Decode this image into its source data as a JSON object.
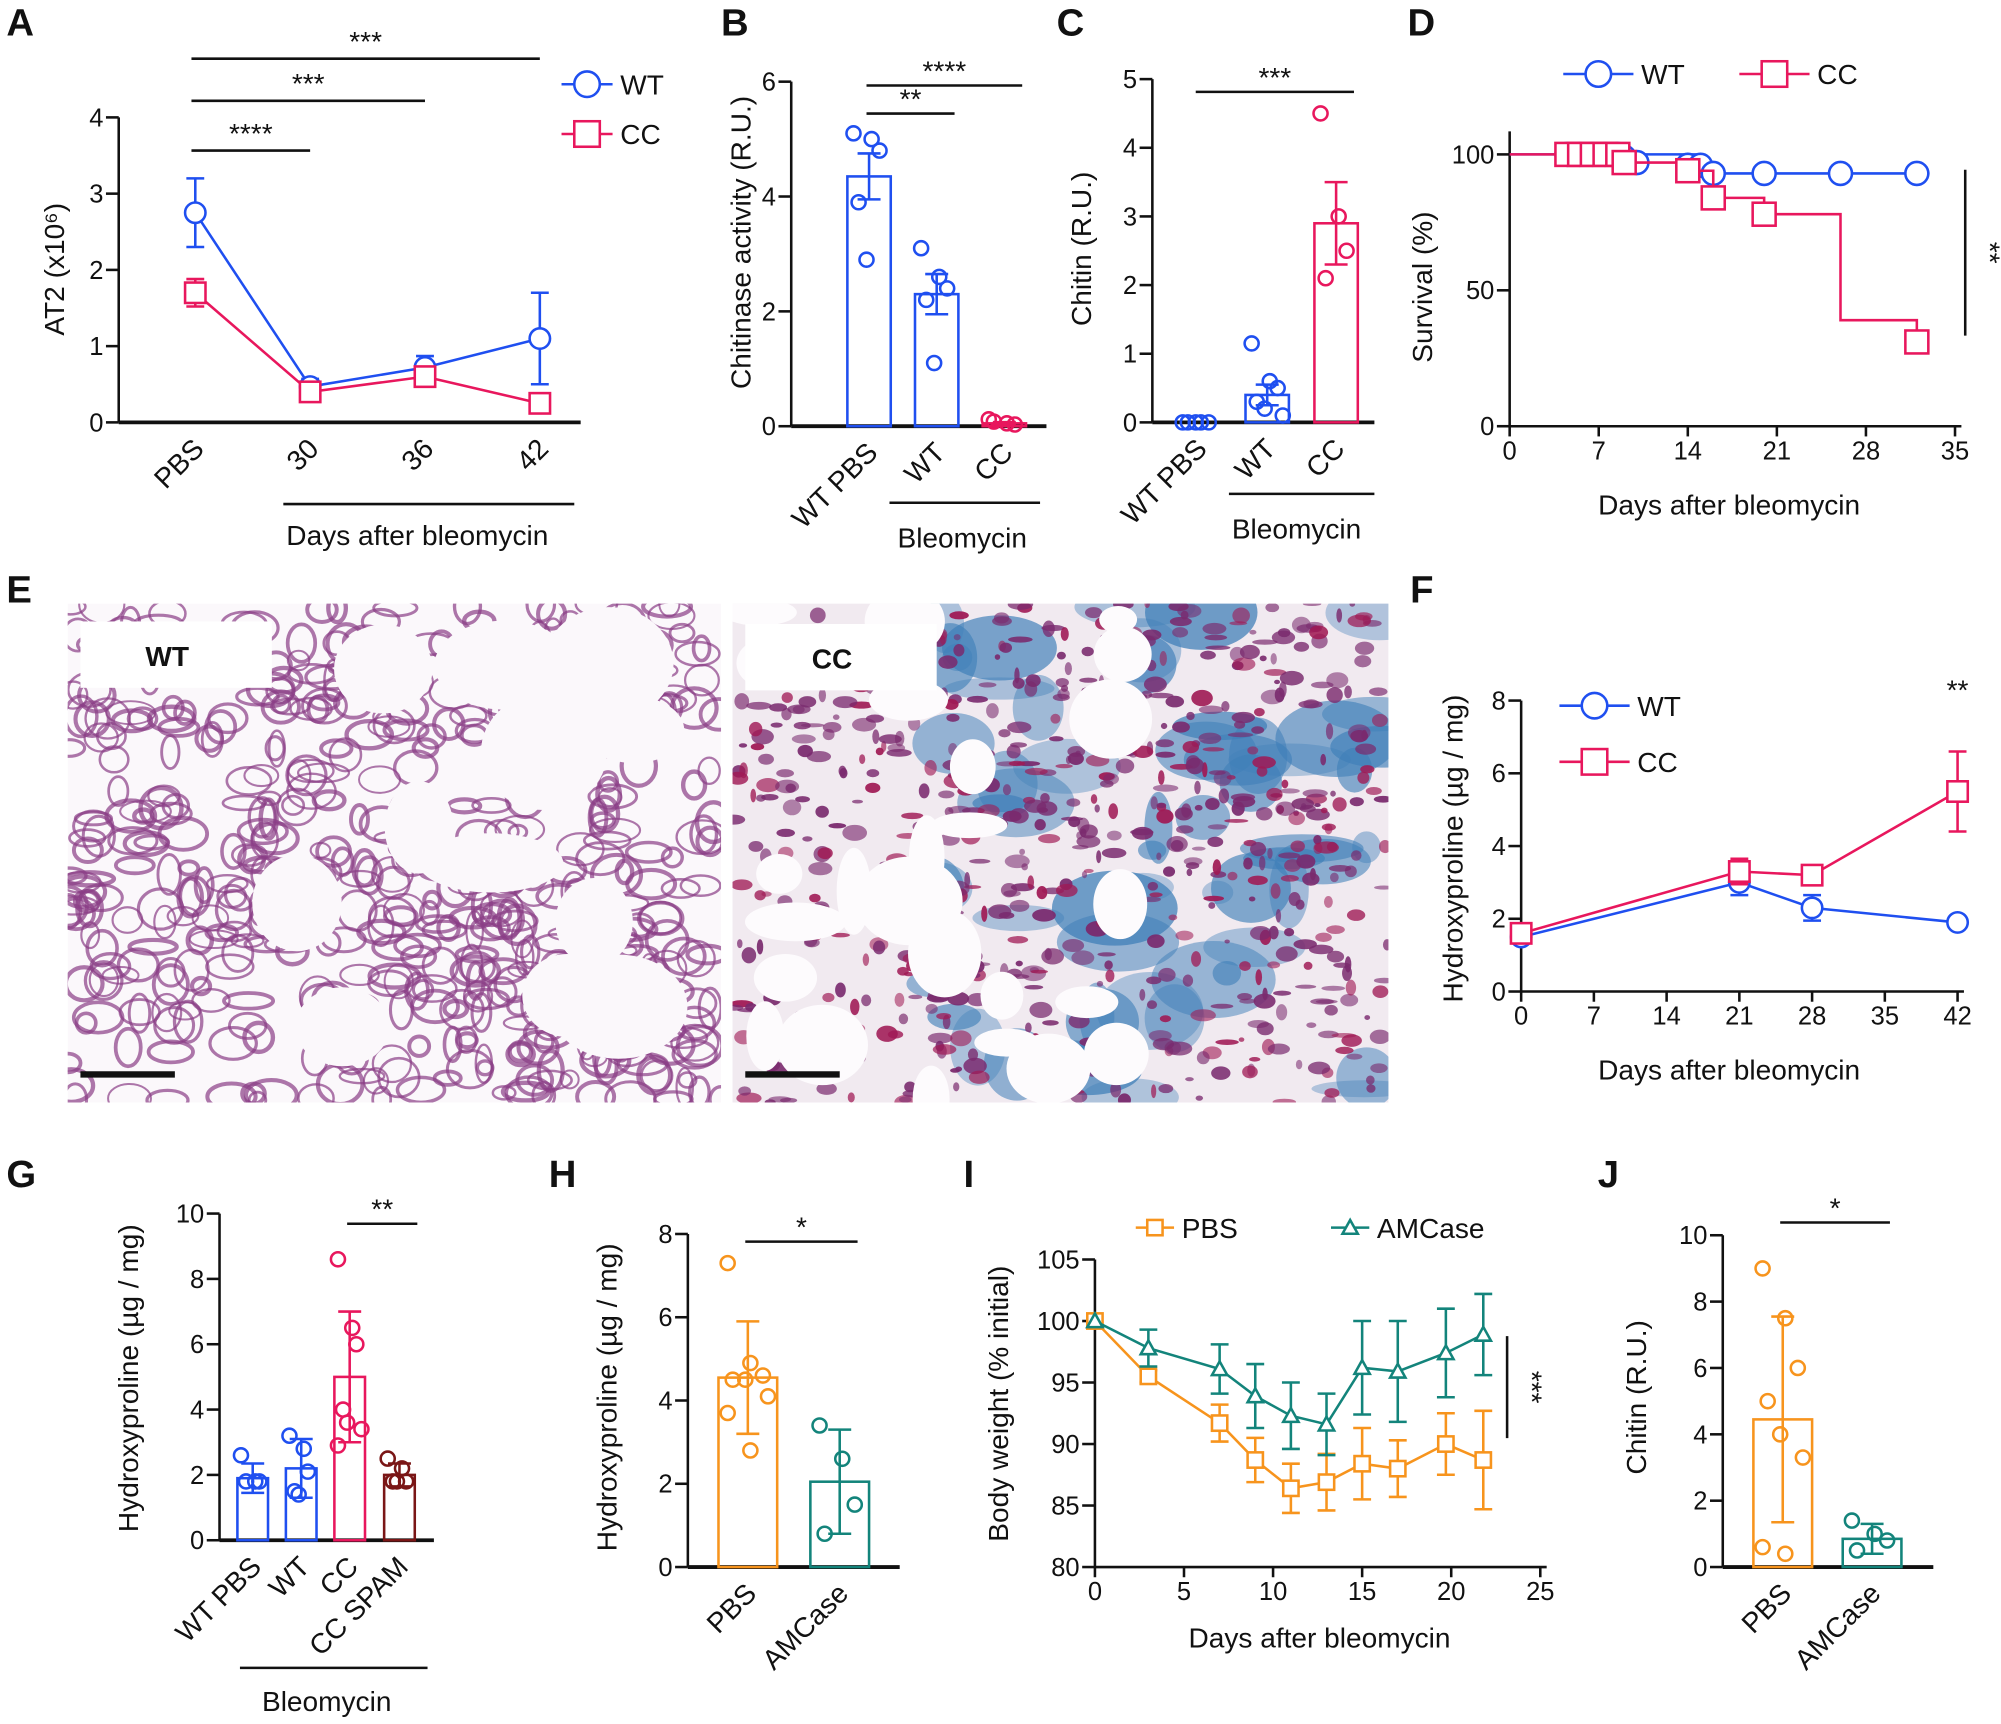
{
  "colors": {
    "wt": "#1f4ff0",
    "cc": "#e8175d",
    "pbs": "#f7941d",
    "amcase": "#13847b",
    "spam": "#7a1616",
    "axis": "#111111"
  },
  "panel_e": {
    "panel": "E",
    "images": [
      {
        "label": "WT"
      },
      {
        "label": "CC"
      }
    ]
  },
  "chart_data": [
    {
      "panel": "A",
      "type": "line",
      "ylabel": "AT2 (x10⁶)",
      "xlabel": "Days after bleomycin",
      "ylim": [
        0,
        4
      ],
      "yticks": [
        "0",
        "1",
        "2",
        "3",
        "4"
      ],
      "categories": [
        "PBS",
        "30",
        "36",
        "42"
      ],
      "series": [
        {
          "name": "WT",
          "color": "wt",
          "marker": "circle",
          "values": [
            2.75,
            0.47,
            0.72,
            1.1
          ],
          "err": [
            0.45,
            0.1,
            0.15,
            0.6
          ]
        },
        {
          "name": "CC",
          "color": "cc",
          "marker": "square",
          "values": [
            1.7,
            0.4,
            0.6,
            0.25
          ],
          "err": [
            0.18,
            0.05,
            0.05,
            0.05
          ]
        }
      ],
      "annotations": [
        {
          "text": "****",
          "from": "PBS",
          "to": "30"
        },
        {
          "text": "***",
          "from": "PBS",
          "to": "36"
        },
        {
          "text": "***",
          "from": "PBS",
          "to": "42"
        }
      ]
    },
    {
      "panel": "B",
      "type": "bar",
      "ylabel": "Chitinase activity (R.U.)",
      "group_label": "Bleomycin",
      "ylim": [
        0,
        6
      ],
      "yticks": [
        "0",
        "2",
        "4",
        "6"
      ],
      "categories": [
        "WT PBS",
        "WT",
        "CC"
      ],
      "bars": [
        {
          "color": "wt",
          "value": 4.35,
          "err": 0.4,
          "points": [
            5.1,
            5.0,
            4.8,
            3.9,
            2.9
          ]
        },
        {
          "color": "wt",
          "value": 2.3,
          "err": 0.35,
          "points": [
            3.1,
            2.6,
            2.4,
            2.2,
            1.1
          ]
        },
        {
          "color": "cc",
          "value": 0.05,
          "err": 0.02,
          "points": [
            0.12,
            0.05,
            0.03,
            0.08
          ]
        }
      ],
      "annotations": [
        {
          "text": "**",
          "from": "WT PBS",
          "to": "WT"
        },
        {
          "text": "****",
          "from": "WT PBS",
          "to": "CC"
        }
      ]
    },
    {
      "panel": "C",
      "type": "bar",
      "ylabel": "Chitin (R.U.)",
      "group_label": "Bleomycin",
      "ylim": [
        0,
        5
      ],
      "yticks": [
        "0",
        "1",
        "2",
        "3",
        "4",
        "5"
      ],
      "categories": [
        "WT PBS",
        "WT",
        "CC"
      ],
      "bars": [
        {
          "color": "wt",
          "value": 0.0,
          "err": 0,
          "points": [
            0,
            0,
            0,
            0,
            0
          ]
        },
        {
          "color": "wt",
          "value": 0.4,
          "err": 0.15,
          "points": [
            1.15,
            0.6,
            0.5,
            0.3,
            0.2,
            0.1
          ]
        },
        {
          "color": "cc",
          "value": 2.9,
          "err": 0.6,
          "points": [
            4.5,
            3.0,
            2.5,
            2.1
          ]
        }
      ],
      "annotations": [
        {
          "text": "***",
          "from": "WT PBS",
          "to": "CC"
        }
      ]
    },
    {
      "panel": "D",
      "type": "line",
      "subtype": "survival",
      "ylabel": "Survival (%)",
      "xlabel": "Days after bleomycin",
      "ylim": [
        0,
        100
      ],
      "yticks": [
        "0",
        "50",
        "100"
      ],
      "xlim": [
        0,
        35
      ],
      "xticks": [
        "0",
        "7",
        "14",
        "21",
        "28",
        "35"
      ],
      "series": [
        {
          "name": "WT",
          "color": "wt",
          "marker": "circle",
          "steps": [
            [
              0,
              100
            ],
            [
              15,
              96
            ],
            [
              16,
              93
            ],
            [
              33,
              93
            ]
          ],
          "censored": [
            [
              4.5,
              100
            ],
            [
              5.5,
              100
            ],
            [
              6.5,
              100
            ],
            [
              7.5,
              100
            ],
            [
              8.5,
              100
            ],
            [
              9,
              99
            ],
            [
              10,
              97
            ],
            [
              14,
              96
            ],
            [
              15,
              96
            ],
            [
              16,
              93
            ],
            [
              20,
              93
            ],
            [
              26,
              93
            ],
            [
              32,
              93
            ]
          ]
        },
        {
          "name": "CC",
          "color": "cc",
          "marker": "square",
          "steps": [
            [
              0,
              100
            ],
            [
              9,
              97
            ],
            [
              14,
              94
            ],
            [
              16,
              84
            ],
            [
              20,
              78
            ],
            [
              26,
              39
            ],
            [
              32,
              31
            ]
          ],
          "censored": [
            [
              4.5,
              100
            ],
            [
              5.5,
              100
            ],
            [
              6.5,
              100
            ],
            [
              7.5,
              100
            ],
            [
              8.5,
              100
            ],
            [
              9,
              97
            ],
            [
              14,
              94
            ],
            [
              16,
              84
            ],
            [
              20,
              78
            ],
            [
              32,
              31
            ]
          ]
        }
      ],
      "annotations": [
        {
          "text": "**",
          "type": "vertical"
        }
      ]
    },
    {
      "panel": "F",
      "type": "line",
      "ylabel": "Hydroxyproline (µg / mg)",
      "xlabel": "Days after bleomycin",
      "ylim": [
        0,
        8
      ],
      "yticks": [
        "0",
        "2",
        "4",
        "6",
        "8"
      ],
      "xlim": [
        0,
        42
      ],
      "xticks": [
        "0",
        "7",
        "14",
        "21",
        "28",
        "35",
        "42"
      ],
      "series": [
        {
          "name": "WT",
          "color": "wt",
          "marker": "circle",
          "x": [
            0,
            21,
            28,
            42
          ],
          "values": [
            1.5,
            3.0,
            2.3,
            1.9
          ],
          "err": [
            0.1,
            0.35,
            0.35,
            0.05
          ]
        },
        {
          "name": "CC",
          "color": "cc",
          "marker": "square",
          "x": [
            0,
            21,
            28,
            42
          ],
          "values": [
            1.6,
            3.3,
            3.2,
            5.5
          ],
          "err": [
            0.2,
            0.35,
            0.1,
            1.1
          ]
        }
      ],
      "annotations": [
        {
          "text": "**",
          "at": 42
        }
      ]
    },
    {
      "panel": "G",
      "type": "bar",
      "ylabel": "Hydroxyproline (µg / mg)",
      "group_label": "Bleomycin",
      "ylim": [
        0,
        10
      ],
      "yticks": [
        "0",
        "2",
        "4",
        "6",
        "8",
        "10"
      ],
      "categories": [
        "WT PBS",
        "WT",
        "CC",
        "CC SPAM"
      ],
      "bars": [
        {
          "color": "wt",
          "value": 1.9,
          "err": 0.45,
          "points": [
            2.6,
            1.8,
            1.8,
            1.8
          ]
        },
        {
          "color": "wt",
          "value": 2.2,
          "err": 0.9,
          "points": [
            3.2,
            2.8,
            2.1,
            1.5,
            1.4
          ]
        },
        {
          "color": "cc",
          "value": 5.0,
          "err": 2.0,
          "points": [
            8.6,
            6.5,
            6.0,
            4.0,
            3.6,
            3.4,
            2.9
          ]
        },
        {
          "color": "spam",
          "value": 2.0,
          "err": 0.35,
          "points": [
            2.5,
            2.2,
            1.8,
            1.8,
            1.8
          ]
        }
      ],
      "annotations": [
        {
          "text": "**",
          "from": "CC",
          "to": "CC SPAM"
        }
      ]
    },
    {
      "panel": "H",
      "type": "bar",
      "ylabel": "Hydroxyproline (µg / mg)",
      "ylim": [
        0,
        8
      ],
      "yticks": [
        "0",
        "2",
        "4",
        "6",
        "8"
      ],
      "categories": [
        "PBS",
        "AMCase"
      ],
      "bars": [
        {
          "color": "pbs",
          "value": 4.55,
          "err": 1.35,
          "points": [
            7.3,
            4.9,
            4.6,
            4.5,
            4.5,
            4.1,
            3.7,
            2.8
          ]
        },
        {
          "color": "amcase",
          "value": 2.05,
          "err": 1.25,
          "points": [
            3.4,
            2.6,
            1.5,
            0.8
          ]
        }
      ],
      "annotations": [
        {
          "text": "*",
          "from": "PBS",
          "to": "AMCase"
        }
      ]
    },
    {
      "panel": "I",
      "type": "line",
      "ylabel": "Body weight (% initial)",
      "xlabel": "Days after bleomycin",
      "ylim": [
        80,
        105
      ],
      "yticks": [
        "80",
        "85",
        "90",
        "95",
        "100",
        "105"
      ],
      "xlim": [
        0,
        25
      ],
      "xticks": [
        "0",
        "5",
        "10",
        "15",
        "20",
        "25"
      ],
      "series": [
        {
          "name": "PBS",
          "color": "pbs",
          "marker": "square",
          "x": [
            0,
            3,
            7,
            9,
            11,
            13,
            15,
            17,
            19.7,
            21.8
          ],
          "values": [
            100,
            95.5,
            91.7,
            88.7,
            86.4,
            86.9,
            88.4,
            88.0,
            90.0,
            88.7
          ],
          "err": [
            0,
            0.5,
            1.5,
            1.8,
            2.0,
            2.3,
            2.9,
            2.3,
            2.5,
            4.0
          ]
        },
        {
          "name": "AMCase",
          "color": "amcase",
          "marker": "triangle",
          "x": [
            0,
            3,
            7,
            9,
            11,
            13,
            15,
            17,
            19.7,
            21.8
          ],
          "values": [
            100,
            97.8,
            96.1,
            93.9,
            92.3,
            91.6,
            96.2,
            95.9,
            97.4,
            98.9
          ],
          "err": [
            0,
            1.5,
            2.0,
            2.6,
            2.7,
            2.5,
            3.8,
            4.1,
            3.6,
            3.3
          ]
        }
      ],
      "annotations": [
        {
          "text": "***",
          "type": "vertical"
        }
      ]
    },
    {
      "panel": "J",
      "type": "bar",
      "ylabel": "Chitin (R.U.)",
      "ylim": [
        0,
        10
      ],
      "yticks": [
        "0",
        "2",
        "4",
        "6",
        "8",
        "10"
      ],
      "categories": [
        "PBS",
        "AMCase"
      ],
      "bars": [
        {
          "color": "pbs",
          "value": 4.45,
          "err": 3.1,
          "points": [
            9.0,
            7.5,
            6.0,
            5.0,
            4.0,
            3.3,
            0.6,
            0.4
          ]
        },
        {
          "color": "amcase",
          "value": 0.85,
          "err": 0.45,
          "points": [
            1.4,
            1.0,
            0.8,
            0.5
          ]
        }
      ],
      "annotations": [
        {
          "text": "*",
          "from": "PBS",
          "to": "AMCase"
        }
      ]
    }
  ]
}
